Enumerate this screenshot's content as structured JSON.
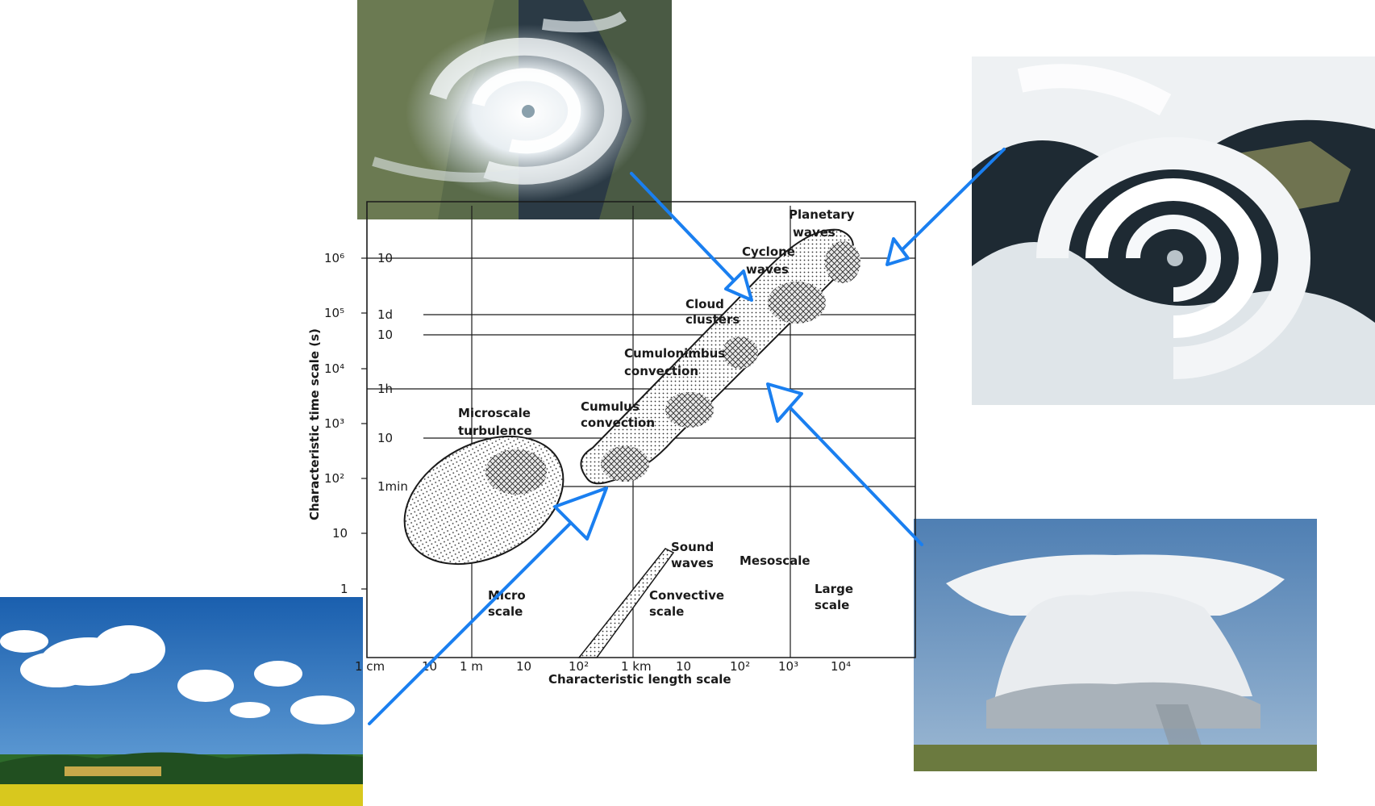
{
  "diagram": {
    "x_axis_label": "Characteristic length scale",
    "y_axis_label": "Characteristic time scale (s)",
    "x_ticks": [
      "1 cm",
      "10",
      "1 m",
      "10",
      "10²",
      "1 km",
      "10",
      "10²",
      "10³",
      "10⁴"
    ],
    "y_ticks_outer": [
      "10⁶",
      "10⁵",
      "10⁴",
      "10³",
      "10²",
      "10",
      "1"
    ],
    "y_ticks_inner": [
      "10",
      "1d",
      "10",
      "1h",
      "10",
      "1min"
    ],
    "labels": {
      "planetary": "Planetary",
      "waves_1": "waves",
      "cyclone": "Cyclone",
      "waves_2": "waves",
      "cloud": "Cloud",
      "clusters": "clusters",
      "cumulonimbus": "Cumulonimbus",
      "convection_1": "convection",
      "cumulus": "Cumulus",
      "convection_2": "convection",
      "microscale": "Microscale",
      "turbulence": "turbulence",
      "sound": "Sound",
      "waves_3": "waves",
      "mesoscale": "Mesoscale",
      "micro": "Micro",
      "scale_1": "scale",
      "convective": "Convective",
      "scale_2": "scale",
      "large": "Large",
      "scale_3": "scale"
    }
  },
  "photos": [
    {
      "name": "tropical-cyclone-satellite-photo"
    },
    {
      "name": "extratropical-cyclone-satellite-photo"
    },
    {
      "name": "cumulus-clouds-landscape-photo"
    },
    {
      "name": "cumulonimbus-cloud-photo"
    }
  ],
  "colors": {
    "arrow": "#1a7ff0",
    "ink": "#1a1a1a"
  }
}
